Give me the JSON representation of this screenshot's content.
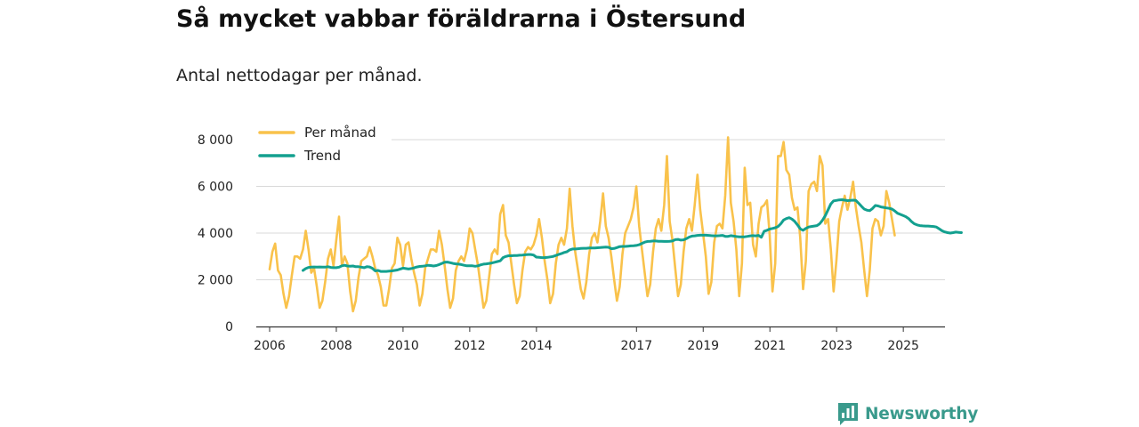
{
  "header": {
    "title": "Så mycket vabbar föräldrarna i Östersund",
    "subtitle": "Antal nettodagar per månad."
  },
  "branding": {
    "name": "Newsworthy",
    "logo_icon": "newsworthy-logo-icon",
    "color": "#3a9a8c"
  },
  "colors": {
    "per_month": "#f9c24b",
    "trend": "#13a08f",
    "grid": "#d9d9d9",
    "axis": "#333333"
  },
  "chart_data": {
    "type": "line",
    "title": "Så mycket vabbar föräldrarna i Östersund",
    "subtitle": "Antal nettodagar per månad.",
    "xlabel": "",
    "ylabel": "",
    "xlim": [
      2005.6,
      2026.25
    ],
    "ylim": [
      0,
      8000
    ],
    "y_ticks": [
      0,
      2000,
      4000,
      6000,
      8000
    ],
    "y_tick_labels": [
      "0",
      "2 000",
      "4 000",
      "6 000",
      "8 000"
    ],
    "x_ticks": [
      2006,
      2008,
      2010,
      2012,
      2014,
      2017,
      2019,
      2021,
      2023,
      2025
    ],
    "x_tick_labels": [
      "2006",
      "2008",
      "2010",
      "2012",
      "2014",
      "2017",
      "2019",
      "2021",
      "2023",
      "2025"
    ],
    "grid": true,
    "legend_position": "top-left",
    "series": [
      {
        "name": "Per månad",
        "key": "per_month",
        "x_start": 2006.0,
        "step": 0.0833,
        "values": [
          2450,
          3200,
          3550,
          2400,
          2200,
          1400,
          800,
          1300,
          2200,
          3000,
          3000,
          2900,
          3300,
          4100,
          3300,
          2300,
          2500,
          1700,
          800,
          1100,
          1900,
          2900,
          3300,
          2600,
          3700,
          4700,
          2600,
          3000,
          2700,
          1500,
          650,
          1100,
          2100,
          2800,
          2900,
          3000,
          3400,
          3000,
          2500,
          2200,
          1700,
          900,
          900,
          1600,
          2500,
          2700,
          3800,
          3500,
          2600,
          3500,
          3600,
          2900,
          2300,
          1800,
          900,
          1400,
          2500,
          2900,
          3300,
          3300,
          3200,
          4100,
          3500,
          2600,
          1600,
          800,
          1200,
          2400,
          2800,
          3000,
          2800,
          3300,
          4200,
          4000,
          3300,
          2600,
          1700,
          800,
          1100,
          2100,
          3100,
          3300,
          3100,
          4800,
          5200,
          3900,
          3600,
          2700,
          1800,
          1000,
          1300,
          2400,
          3200,
          3400,
          3300,
          3500,
          3900,
          4600,
          3800,
          2800,
          2000,
          1000,
          1400,
          2700,
          3500,
          3800,
          3500,
          4200,
          5900,
          4300,
          3200,
          2400,
          1600,
          1200,
          1900,
          3100,
          3800,
          4000,
          3600,
          4500,
          5700,
          4300,
          3800,
          3000,
          2000,
          1100,
          1700,
          3100,
          4000,
          4300,
          4600,
          5100,
          6000,
          4300,
          3300,
          2300,
          1300,
          1800,
          3200,
          4200,
          4600,
          4100,
          5200,
          7300,
          4500,
          3700,
          2500,
          1300,
          1800,
          3200,
          4200,
          4600,
          4100,
          5200,
          6500,
          5000,
          4000,
          3000,
          1400,
          1900,
          3600,
          4300,
          4400,
          4200,
          5600,
          8100,
          5300,
          4500,
          3300,
          1300,
          2700,
          6800,
          5200,
          5300,
          3500,
          3000,
          4400,
          5100,
          5200,
          5400,
          3900,
          1500,
          2700,
          7300,
          7300,
          7900,
          6700,
          6500,
          5500,
          5000,
          5100,
          3800,
          1600,
          2800,
          5800,
          6100,
          6200,
          5800,
          7300,
          6900,
          4400,
          4600,
          3300,
          1500,
          2800,
          4500,
          5100,
          5600,
          5000,
          5500,
          6200,
          5100,
          4300,
          3600,
          2400,
          1300,
          2400,
          4200,
          4600,
          4500,
          3900,
          4300,
          5800,
          5300,
          4600,
          3900
        ]
      },
      {
        "name": "Trend",
        "key": "trend",
        "x_start": 2007.0,
        "step": 0.0833,
        "values": [
          2400,
          2480,
          2530,
          2540,
          2550,
          2540,
          2550,
          2540,
          2540,
          2560,
          2530,
          2520,
          2520,
          2540,
          2600,
          2620,
          2590,
          2580,
          2590,
          2560,
          2560,
          2540,
          2520,
          2560,
          2550,
          2490,
          2380,
          2400,
          2360,
          2360,
          2360,
          2370,
          2380,
          2400,
          2420,
          2460,
          2500,
          2480,
          2460,
          2480,
          2510,
          2550,
          2570,
          2580,
          2600,
          2620,
          2610,
          2590,
          2610,
          2650,
          2700,
          2750,
          2760,
          2730,
          2700,
          2680,
          2670,
          2650,
          2620,
          2600,
          2600,
          2600,
          2580,
          2600,
          2640,
          2670,
          2680,
          2700,
          2720,
          2750,
          2780,
          2810,
          2950,
          3000,
          3030,
          3030,
          3040,
          3040,
          3050,
          3060,
          3070,
          3080,
          3080,
          3060,
          2970,
          2960,
          2950,
          2950,
          2960,
          2980,
          3000,
          3040,
          3080,
          3120,
          3170,
          3200,
          3280,
          3320,
          3320,
          3330,
          3340,
          3350,
          3350,
          3360,
          3360,
          3360,
          3370,
          3380,
          3390,
          3400,
          3390,
          3330,
          3340,
          3380,
          3420,
          3430,
          3430,
          3440,
          3450,
          3460,
          3470,
          3500,
          3560,
          3610,
          3640,
          3650,
          3660,
          3660,
          3650,
          3650,
          3640,
          3640,
          3650,
          3660,
          3720,
          3730,
          3700,
          3710,
          3760,
          3830,
          3870,
          3880,
          3900,
          3910,
          3910,
          3910,
          3900,
          3890,
          3880,
          3880,
          3890,
          3900,
          3860,
          3860,
          3890,
          3870,
          3850,
          3840,
          3840,
          3840,
          3860,
          3880,
          3890,
          3880,
          3900,
          3820,
          4080,
          4120,
          4170,
          4200,
          4230,
          4280,
          4400,
          4560,
          4620,
          4660,
          4600,
          4500,
          4350,
          4180,
          4120,
          4200,
          4260,
          4280,
          4300,
          4320,
          4400,
          4550,
          4750,
          5000,
          5250,
          5380,
          5400,
          5420,
          5430,
          5410,
          5390,
          5400,
          5410,
          5400,
          5280,
          5150,
          5030,
          4980,
          4960,
          5050,
          5180,
          5160,
          5120,
          5100,
          5080,
          5060,
          5030,
          4950,
          4850,
          4800,
          4750,
          4700,
          4620,
          4500,
          4400,
          4350,
          4320,
          4310,
          4300,
          4300,
          4290,
          4280,
          4260,
          4180,
          4100,
          4050,
          4020,
          4000,
          4020,
          4040,
          4030,
          4020
        ]
      }
    ]
  }
}
